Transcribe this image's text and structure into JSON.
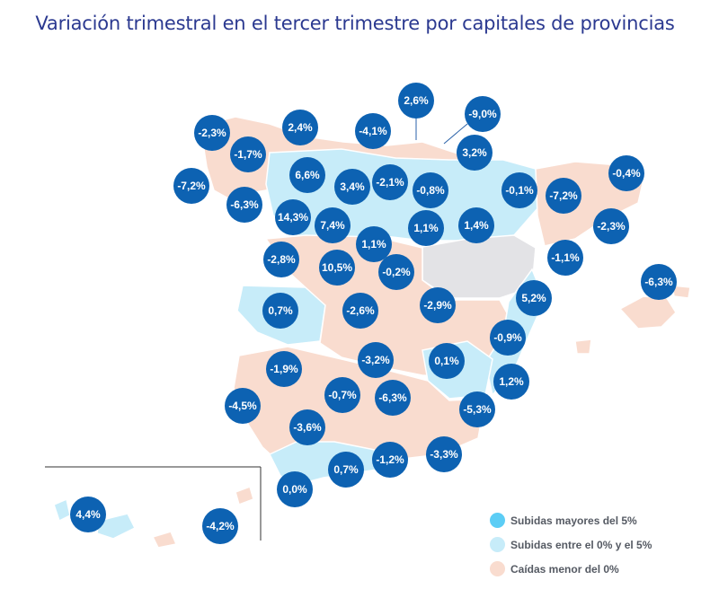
{
  "title": "Variación trimestral en el tercer trimestre por capitales de provincias",
  "colors": {
    "high": "#5ccdf5",
    "mid": "#c7ecf9",
    "low": "#f9dccf",
    "nodata": "#e3e3e6",
    "badge": "#0d62b2",
    "title": "#2b3990"
  },
  "legend": [
    {
      "label": "Subidas mayores del 5%",
      "color": "#5ccdf5"
    },
    {
      "label": "Subidas entre el 0% y el 5%",
      "color": "#c7ecf9"
    },
    {
      "label": "Caídas menor del 0%",
      "color": "#f9dccf"
    }
  ],
  "provinces": [
    {
      "label": "2,6%"
    },
    {
      "label": "-9,0%"
    },
    {
      "label": "-2,3%"
    },
    {
      "label": "2,4%"
    },
    {
      "label": "-4,1%"
    },
    {
      "label": "-1,7%"
    },
    {
      "label": "3,2%"
    },
    {
      "label": "6,6%"
    },
    {
      "label": "-0,4%"
    },
    {
      "label": "-7,2%"
    },
    {
      "label": "3,4%"
    },
    {
      "label": "-2,1%"
    },
    {
      "label": "-0,8%"
    },
    {
      "label": "-0,1%"
    },
    {
      "label": "-7,2%"
    },
    {
      "label": "-6,3%"
    },
    {
      "label": "14,3%"
    },
    {
      "label": "7,4%"
    },
    {
      "label": "1,1%"
    },
    {
      "label": "1,4%"
    },
    {
      "label": "-2,3%"
    },
    {
      "label": "1,1%"
    },
    {
      "label": "-2,8%"
    },
    {
      "label": "-1,1%"
    },
    {
      "label": "10,5%"
    },
    {
      "label": "-0,2%"
    },
    {
      "label": "-6,3%"
    },
    {
      "label": "5,2%"
    },
    {
      "label": "0,7%"
    },
    {
      "label": "-2,6%"
    },
    {
      "label": "-2,9%"
    },
    {
      "label": "-0,9%"
    },
    {
      "label": "-3,2%"
    },
    {
      "label": "0,1%"
    },
    {
      "label": "-1,9%"
    },
    {
      "label": "1,2%"
    },
    {
      "label": "-0,7%"
    },
    {
      "label": "-6,3%"
    },
    {
      "label": "-4,5%"
    },
    {
      "label": "-5,3%"
    },
    {
      "label": "-3,6%"
    },
    {
      "label": "-3,3%"
    },
    {
      "label": "-1,2%"
    },
    {
      "label": "0,7%"
    },
    {
      "label": "0,0%"
    },
    {
      "label": "4,4%"
    },
    {
      "label": "-4,2%"
    }
  ]
}
